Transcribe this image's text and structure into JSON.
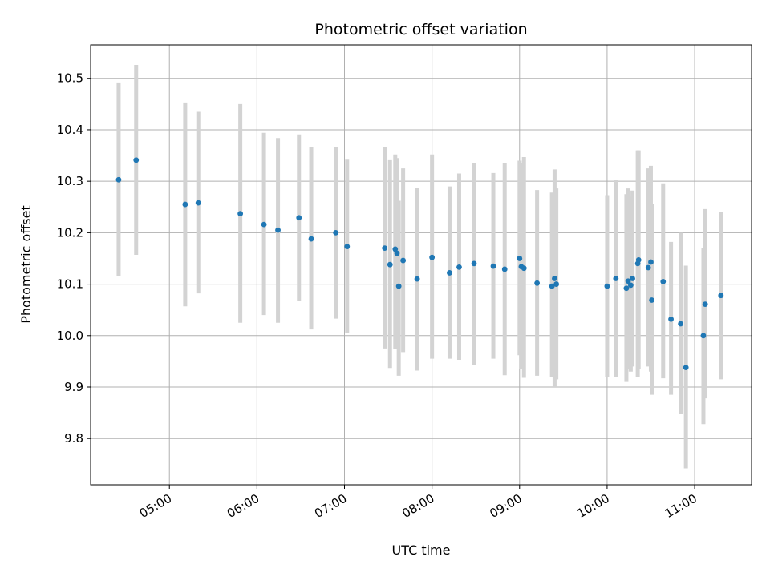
{
  "chart_data": {
    "type": "scatter",
    "title": "Photometric offset variation",
    "xlabel": "UTC time",
    "ylabel": "Photometric offset",
    "x_unit": "hours (UTC)",
    "xlim": [
      4.1,
      11.65
    ],
    "ylim": [
      9.71,
      10.565
    ],
    "grid": true,
    "x_tick_labels": [
      "05:00",
      "06:00",
      "07:00",
      "08:00",
      "09:00",
      "10:00",
      "11:00"
    ],
    "y_tick_labels": [
      "9.8",
      "9.9",
      "10.0",
      "10.1",
      "10.2",
      "10.3",
      "10.4",
      "10.5"
    ],
    "colors": {
      "marker": "#1f77b4",
      "errorbar": "#d3d3d3",
      "grid": "#b0b0b0",
      "axes": "#000000"
    },
    "series": [
      {
        "x": [
          4.42,
          4.62,
          5.18,
          5.33,
          5.81,
          6.08,
          6.24,
          6.48,
          6.62,
          6.9,
          7.03,
          7.46,
          7.52,
          7.58,
          7.6,
          7.62,
          7.67,
          7.83,
          8.0,
          8.2,
          8.31,
          8.48,
          8.7,
          8.83,
          9.0,
          9.02,
          9.05,
          9.2,
          9.37,
          9.4,
          9.42,
          10.0,
          10.1,
          10.22,
          10.24,
          10.27,
          10.29,
          10.35,
          10.36,
          10.47,
          10.5,
          10.51,
          10.64,
          10.73,
          10.84,
          10.9,
          11.1,
          11.12,
          11.3
        ],
        "y": [
          10.303,
          10.341,
          10.255,
          10.258,
          10.237,
          10.216,
          10.205,
          10.229,
          10.188,
          10.2,
          10.173,
          10.17,
          10.138,
          10.168,
          10.16,
          10.096,
          10.146,
          10.11,
          10.152,
          10.122,
          10.133,
          10.14,
          10.135,
          10.129,
          10.15,
          10.134,
          10.131,
          10.102,
          10.096,
          10.111,
          10.1,
          10.096,
          10.111,
          10.092,
          10.106,
          10.098,
          10.111,
          10.14,
          10.147,
          10.132,
          10.143,
          10.069,
          10.105,
          10.032,
          10.023,
          9.938,
          10.0,
          10.061,
          10.078
        ],
        "y_low": [
          10.115,
          10.157,
          10.057,
          10.082,
          10.025,
          10.04,
          10.025,
          10.068,
          10.012,
          10.033,
          10.005,
          9.975,
          9.937,
          9.974,
          9.983,
          9.922,
          9.968,
          9.932,
          9.955,
          9.955,
          9.953,
          9.943,
          9.955,
          9.923,
          9.962,
          9.935,
          9.918,
          9.922,
          9.92,
          9.9,
          9.915,
          9.92,
          9.92,
          9.91,
          9.935,
          9.93,
          9.94,
          9.92,
          9.935,
          9.94,
          9.93,
          9.885,
          9.917,
          9.885,
          9.848,
          9.742,
          9.828,
          9.878,
          9.915
        ],
        "y_high": [
          10.492,
          10.526,
          10.453,
          10.435,
          10.45,
          10.394,
          10.384,
          10.391,
          10.366,
          10.367,
          10.342,
          10.366,
          10.341,
          10.352,
          10.345,
          10.262,
          10.325,
          10.287,
          10.352,
          10.29,
          10.315,
          10.336,
          10.316,
          10.336,
          10.34,
          10.335,
          10.347,
          10.283,
          10.278,
          10.323,
          10.286,
          10.273,
          10.302,
          10.275,
          10.286,
          10.27,
          10.282,
          10.36,
          10.36,
          10.325,
          10.33,
          10.256,
          10.296,
          10.182,
          10.2,
          10.136,
          10.17,
          10.246,
          10.241
        ]
      }
    ]
  }
}
